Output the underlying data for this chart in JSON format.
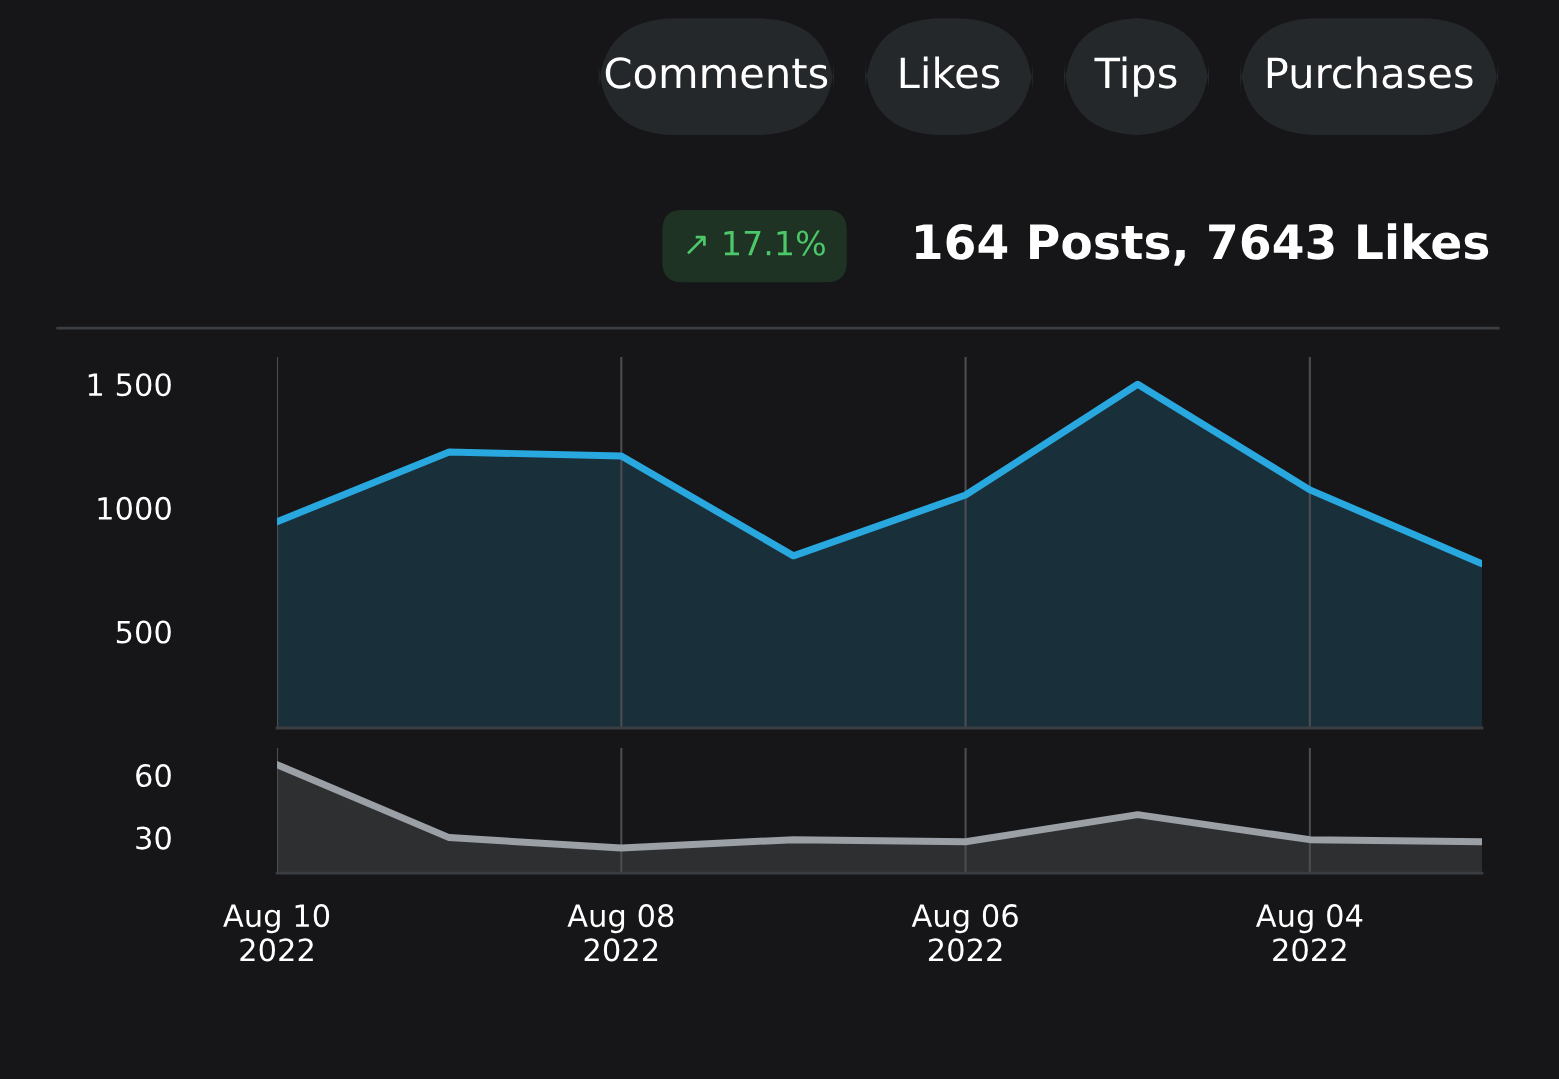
{
  "chart_data": [
    {
      "type": "area",
      "title": "164 Posts, 7643 Likes",
      "annotations": [
        "↗ 17.1%",
        "Purchases",
        "Tips",
        "Likes",
        "Comments"
      ],
      "x": [
        "2022-08-10",
        "2022-08-09",
        "2022-08-08",
        "2022-08-07",
        "2022-08-06",
        "2022-08-05",
        "2022-08-04",
        "2022-08-03"
      ],
      "series": [
        {
          "color": "#29a8e0",
          "values": [
            944,
            1226,
            1210,
            806,
            1052,
            1500,
            1073,
            774
          ]
        }
      ],
      "xlim": [
        "2022-08-10",
        "2022-08-03"
      ],
      "xticks": [
        {
          "value": "2022-08-10",
          "label": null
        },
        {
          "value": "2022-08-08",
          "label": null
        },
        {
          "value": "2022-08-06",
          "label": null
        },
        {
          "value": "2022-08-04",
          "label": null
        }
      ],
      "ylim": [
        110,
        1610
      ],
      "yticks": [
        500,
        1000,
        {
          "value": 1500,
          "label": "1 500"
        }
      ],
      "grid": "x",
      "tick_labels": "y",
      "legend": false
    },
    {
      "type": "area",
      "x": [
        "2022-08-10",
        "2022-08-09",
        "2022-08-08",
        "2022-08-07",
        "2022-08-06",
        "2022-08-05",
        "2022-08-04",
        "2022-08-03"
      ],
      "series": [
        {
          "color": "#9aa0a6",
          "values": [
            65,
            30,
            25,
            29,
            28,
            41,
            29,
            28
          ]
        }
      ],
      "xlim": [
        "2022-08-10",
        "2022-08-03"
      ],
      "xticks": [
        {
          "value": "2022-08-10",
          "label": "Aug 10\n2022"
        },
        {
          "value": "2022-08-08",
          "label": "Aug 08\n2022"
        },
        {
          "value": "2022-08-06",
          "label": "Aug 06\n2022"
        },
        {
          "value": "2022-08-04",
          "label": "Aug 04\n2022"
        }
      ],
      "ylim": [
        13,
        73
      ],
      "yticks": [
        30,
        60
      ],
      "grid": "x",
      "legend": false
    }
  ]
}
